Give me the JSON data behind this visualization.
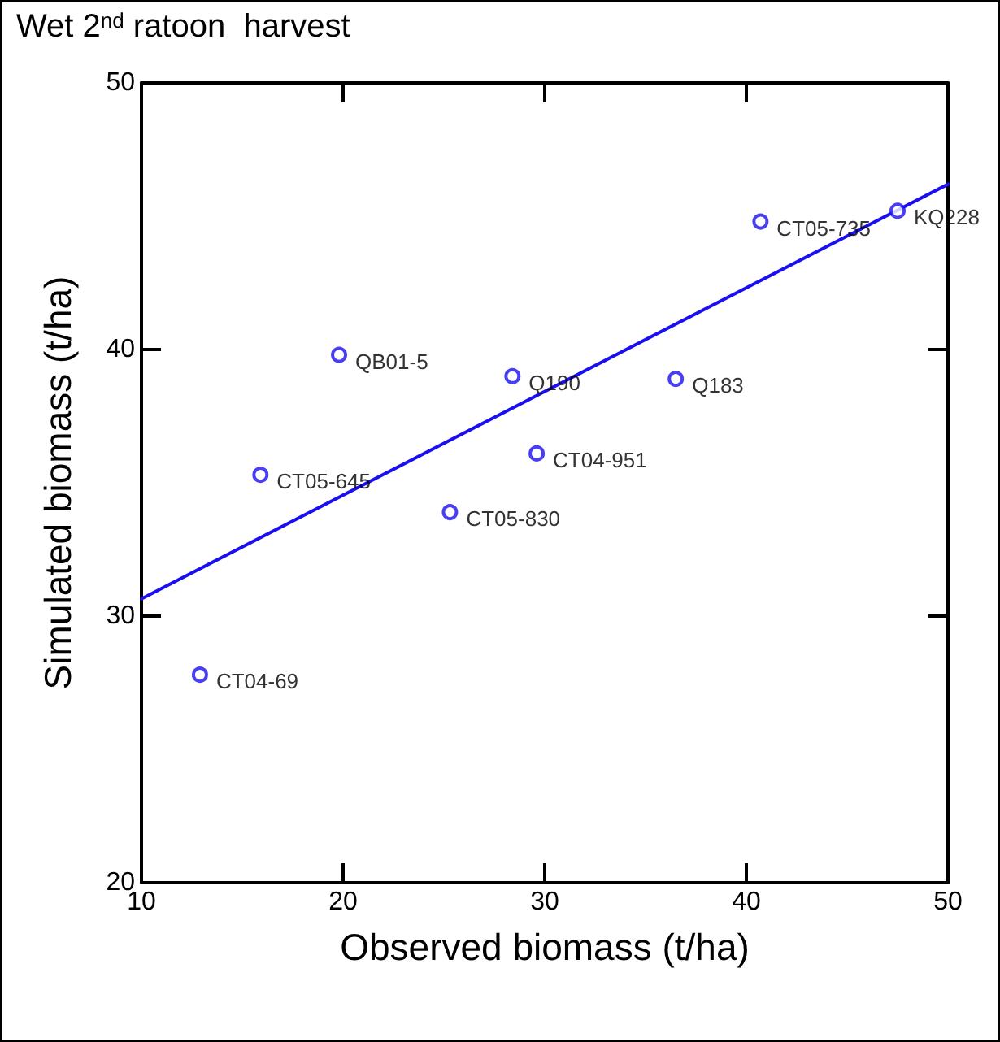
{
  "chart_data": {
    "type": "scatter",
    "title": "Wet 2$^{nd}$ ratoon  harvest",
    "xlabel": "Observed biomass (t/ha)",
    "ylabel": "Simulated biomass (t/ha)",
    "xlim": [
      10,
      50
    ],
    "xticks": [
      10,
      20,
      30,
      40,
      50
    ],
    "ylim": [
      20,
      50
    ],
    "yticks": [
      20,
      30,
      40,
      50
    ],
    "grid": false,
    "marker": "circle",
    "series": [
      {
        "color": "#1a0ff0",
        "x": [
          12.9,
          15.9,
          19.8,
          25.3,
          28.4,
          29.6,
          36.5,
          40.7,
          47.5
        ],
        "values": [
          27.8,
          35.3,
          39.8,
          33.9,
          39.0,
          36.1,
          38.9,
          44.8,
          45.2
        ]
      },
      {
        "type": "line",
        "color": "#1a0ff0",
        "marker": "none",
        "line_style": "solid",
        "x": [
          10,
          50
        ],
        "values": [
          30.65,
          46.2
        ]
      }
    ],
    "annotations": [
      {
        "text": "CT04-69",
        "x": 12.9,
        "y": 27.8
      },
      {
        "text": "CT05-645",
        "x": 15.9,
        "y": 35.3
      },
      {
        "text": "QB01-5",
        "x": 19.8,
        "y": 39.8
      },
      {
        "text": "CT05-830",
        "x": 25.3,
        "y": 33.9
      },
      {
        "text": "Q190",
        "x": 28.4,
        "y": 39.0
      },
      {
        "text": "CT04-951",
        "x": 29.6,
        "y": 36.1
      },
      {
        "text": "Q183",
        "x": 36.5,
        "y": 38.9
      },
      {
        "text": "CT05-735",
        "x": 40.7,
        "y": 44.8
      },
      {
        "text": "KQ228",
        "x": 47.5,
        "y": 45.2
      }
    ]
  }
}
